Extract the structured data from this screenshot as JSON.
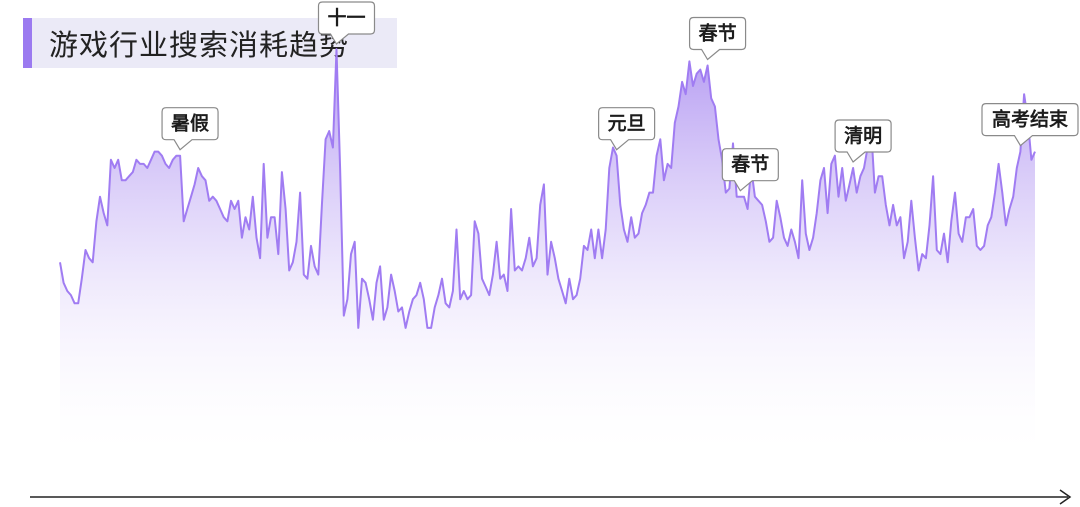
{
  "title": "游戏行业搜索消耗趋势",
  "colors": {
    "accent": "#9b7af0",
    "line": "#a07cf2",
    "fill_top": "#9d7bee",
    "fill_bottom": "#ffffff",
    "title_bg": "#ebeaf7",
    "axis": "#222222"
  },
  "annotations": [
    {
      "label": "暑假",
      "index": 33
    },
    {
      "label": "十一",
      "index": 76
    },
    {
      "label": "元旦",
      "index": 153
    },
    {
      "label": "春节",
      "index": 178
    },
    {
      "label": "春节",
      "index": 187
    },
    {
      "label": "清明",
      "index": 218
    },
    {
      "label": "高考结束",
      "index": 264
    }
  ],
  "chart_data": {
    "type": "area",
    "title": "游戏行业搜索消耗趋势",
    "xlabel": "",
    "ylabel": "",
    "ylim": [
      0,
      100
    ],
    "grid": false,
    "legend": "none",
    "values": [
      47,
      42,
      40,
      39,
      37,
      37,
      43,
      50,
      48,
      47,
      57,
      63,
      59,
      56,
      72,
      70,
      72,
      67,
      67,
      68,
      69,
      72,
      71,
      71,
      70,
      72,
      74,
      74,
      73,
      71,
      70,
      72,
      73,
      73,
      57,
      60,
      63,
      66,
      70,
      68,
      67,
      62,
      63,
      62,
      60,
      58,
      57,
      62,
      60,
      62,
      53,
      58,
      55,
      63,
      53,
      48,
      71,
      53,
      58,
      58,
      49,
      69,
      60,
      45,
      47,
      52,
      64,
      44,
      43,
      51,
      46,
      44,
      61,
      77,
      79,
      75,
      99,
      70,
      34,
      38,
      49,
      52,
      31,
      43,
      42,
      38,
      33,
      42,
      46,
      33,
      36,
      44,
      40,
      35,
      36,
      31,
      35,
      38,
      39,
      42,
      38,
      31,
      31,
      36,
      39,
      43,
      37,
      36,
      40,
      55,
      38,
      40,
      38,
      39,
      57,
      54,
      43,
      41,
      39,
      44,
      52,
      43,
      44,
      40,
      60,
      45,
      46,
      45,
      48,
      53,
      46,
      48,
      61,
      66,
      44,
      52,
      48,
      43,
      40,
      37,
      43,
      38,
      39,
      43,
      51,
      50,
      55,
      48,
      55,
      48,
      55,
      70,
      75,
      73,
      61,
      55,
      52,
      58,
      53,
      54,
      59,
      61,
      64,
      64,
      73,
      77,
      67,
      71,
      70,
      81,
      85,
      91,
      88,
      96,
      90,
      93,
      94,
      91,
      95,
      87,
      85,
      77,
      72,
      64,
      65,
      76,
      63,
      63,
      63,
      60,
      70,
      63,
      62,
      61,
      57,
      52,
      53,
      62,
      58,
      53,
      51,
      55,
      52,
      48,
      67,
      54,
      50,
      53,
      59,
      67,
      70,
      59,
      71,
      73,
      63,
      70,
      62,
      66,
      70,
      64,
      68,
      70,
      75,
      79,
      64,
      68,
      68,
      61,
      56,
      61,
      56,
      58,
      48,
      52,
      62,
      53,
      45,
      49,
      48,
      56,
      68,
      50,
      49,
      54,
      47,
      57,
      64,
      54,
      52,
      58,
      58,
      60,
      51,
      50,
      51,
      56,
      58,
      64,
      71,
      64,
      56,
      60,
      63,
      70,
      74,
      88,
      82,
      72,
      74
    ]
  }
}
